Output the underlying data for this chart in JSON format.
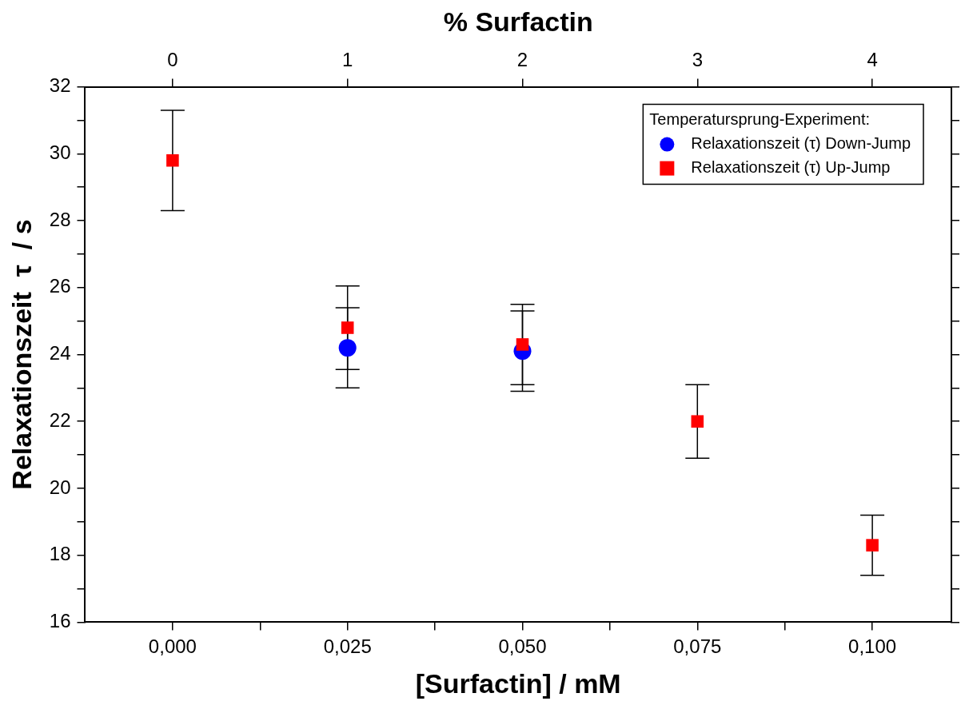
{
  "chart_data": {
    "type": "scatter",
    "xlabel": "[Surfactin] / mM",
    "ylabel": "Relaxationszeit  τ  / s",
    "x2label": "% Surfactin",
    "legend_title": "Temperatursprung-Experiment:",
    "xlim": [
      -0.0125,
      0.1113
    ],
    "xticks": [
      {
        "value": 0,
        "label": "0,000"
      },
      {
        "value": 0.0125,
        "label": null
      },
      {
        "value": 0.025,
        "label": "0,025"
      },
      {
        "value": 0.0375,
        "label": null
      },
      {
        "value": 0.05,
        "label": "0,050"
      },
      {
        "value": 0.0625,
        "label": null
      },
      {
        "value": 0.075,
        "label": "0,075"
      },
      {
        "value": 0.0875,
        "label": null
      },
      {
        "value": 0.1,
        "label": "0,100"
      }
    ],
    "x2lim": [
      -0.5,
      4.452
    ],
    "x2ticks": [
      0,
      1,
      2,
      3,
      4
    ],
    "ylim": [
      16,
      32
    ],
    "yticks": [
      16,
      {
        "value": 17,
        "label": null
      },
      18,
      {
        "value": 19,
        "label": null
      },
      20,
      {
        "value": 21,
        "label": null
      },
      22,
      {
        "value": 23,
        "label": null
      },
      24,
      {
        "value": 25,
        "label": null
      },
      26,
      {
        "value": 27,
        "label": null
      },
      28,
      {
        "value": 29,
        "label": null
      },
      30,
      {
        "value": 31,
        "label": null
      },
      32
    ],
    "grid": false,
    "legend": "top right",
    "series": [
      {
        "name": "Relaxationszeit (τ) Down-Jump",
        "color": "#0000ff",
        "marker": "circle",
        "x": [
          0.025,
          0.05
        ],
        "values": [
          24.2,
          24.1
        ],
        "errors": [
          1.2,
          1.2
        ]
      },
      {
        "name": "Relaxationszeit (τ) Up-Jump",
        "color": "#ff0000",
        "marker": "square",
        "x": [
          0,
          0.025,
          0.05,
          0.075,
          0.1
        ],
        "values": [
          29.8,
          24.8,
          24.3,
          22.0,
          18.3
        ],
        "errors": [
          1.5,
          1.25,
          1.2,
          1.1,
          0.9
        ]
      }
    ]
  }
}
